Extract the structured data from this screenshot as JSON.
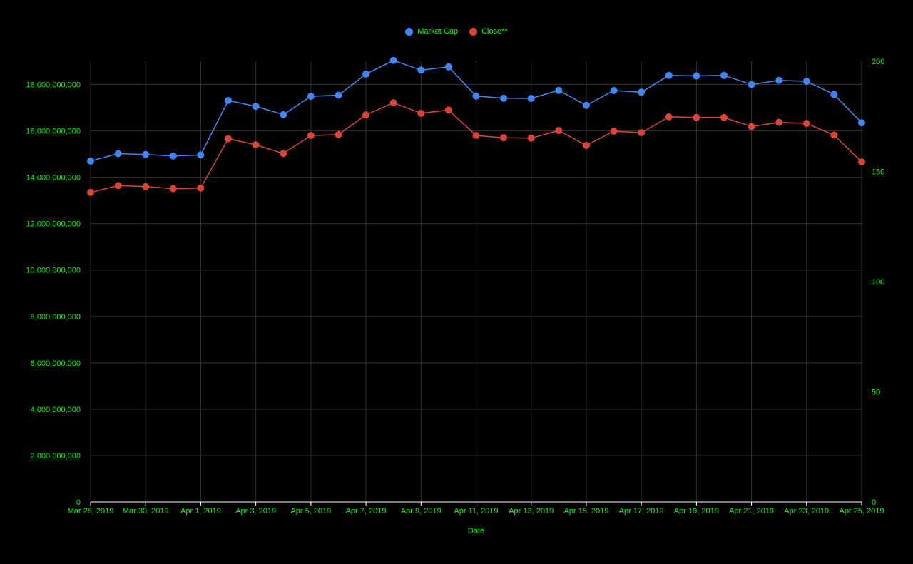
{
  "colors": {
    "background": "#000000",
    "text": "#00ff00",
    "grid": "#333333",
    "axis": "#ffffff",
    "market_cap": "#4285f4",
    "close": "#db4437"
  },
  "chart_data": {
    "type": "line",
    "title": "",
    "xlabel": "Date",
    "ylabel_left": "",
    "ylabel_right": "",
    "legend_position": "top-center",
    "grid": true,
    "x": [
      "Mar 28, 2019",
      "Mar 29, 2019",
      "Mar 30, 2019",
      "Mar 31, 2019",
      "Apr 1, 2019",
      "Apr 2, 2019",
      "Apr 3, 2019",
      "Apr 4, 2019",
      "Apr 5, 2019",
      "Apr 6, 2019",
      "Apr 7, 2019",
      "Apr 8, 2019",
      "Apr 9, 2019",
      "Apr 10, 2019",
      "Apr 11, 2019",
      "Apr 12, 2019",
      "Apr 13, 2019",
      "Apr 14, 2019",
      "Apr 15, 2019",
      "Apr 16, 2019",
      "Apr 17, 2019",
      "Apr 18, 2019",
      "Apr 19, 2019",
      "Apr 20, 2019",
      "Apr 21, 2019",
      "Apr 22, 2019",
      "Apr 23, 2019",
      "Apr 24, 2019",
      "Apr 25, 2019"
    ],
    "x_tick_labels": [
      "Mar 28, 2019",
      "Mar 30, 2019",
      "Apr 1, 2019",
      "Apr 3, 2019",
      "Apr 5, 2019",
      "Apr 7, 2019",
      "Apr 9, 2019",
      "Apr 11, 2019",
      "Apr 13, 2019",
      "Apr 15, 2019",
      "Apr 17, 2019",
      "Apr 19, 2019",
      "Apr 21, 2019",
      "Apr 23, 2019",
      "Apr 25, 2019"
    ],
    "y_left": {
      "range": [
        0,
        19000000000
      ],
      "ticks": [
        0,
        2000000000,
        4000000000,
        6000000000,
        8000000000,
        10000000000,
        12000000000,
        14000000000,
        16000000000,
        18000000000
      ],
      "tick_labels": [
        "0",
        "2,000,000,000",
        "4,000,000,000",
        "6,000,000,000",
        "8,000,000,000",
        "10,000,000,000",
        "12,000,000,000",
        "14,000,000,000",
        "16,000,000,000",
        "18,000,000,000"
      ]
    },
    "y_right": {
      "range": [
        0,
        200
      ],
      "ticks": [
        0,
        50,
        100,
        150,
        200
      ],
      "tick_labels": [
        "0",
        "50",
        "100",
        "150",
        "200"
      ]
    },
    "series": [
      {
        "name": "Market Cap",
        "axis": "left",
        "values": [
          14700000000,
          15020000000,
          14980000000,
          14920000000,
          14960000000,
          17310000000,
          17060000000,
          16700000000,
          17490000000,
          17540000000,
          18450000000,
          19040000000,
          18620000000,
          18760000000,
          17500000000,
          17410000000,
          17400000000,
          17750000000,
          17100000000,
          17740000000,
          17670000000,
          18390000000,
          18370000000,
          18390000000,
          18000000000,
          18180000000,
          18140000000,
          17570000000,
          16350000000
        ]
      },
      {
        "name": "Close**",
        "axis": "right",
        "values": [
          140.5,
          143.6,
          143.1,
          142.2,
          142.5,
          164.9,
          162.1,
          158.2,
          166.3,
          166.7,
          175.7,
          181.2,
          176.4,
          177.9,
          166.3,
          165.3,
          165.1,
          168.6,
          161.8,
          168.3,
          167.6,
          174.8,
          174.5,
          174.5,
          170.4,
          172.3,
          171.8,
          166.5,
          154.3
        ]
      }
    ]
  }
}
